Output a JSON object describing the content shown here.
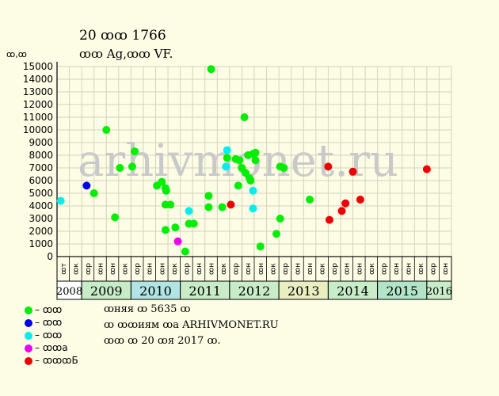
{
  "header": {
    "title": "20 ꝏꝏ 1766",
    "subtitle": "ꝏꝏ Ag,ꝏꝏ VF.",
    "y_unit": "ꝏ,ꝏ"
  },
  "watermark": "arhivmonet.ru",
  "legend": [
    {
      "label": "– ꝏꝏ",
      "color": "#00ee00"
    },
    {
      "label": "– ꝏꝏ",
      "color": "#0000ee"
    },
    {
      "label": "– ꝏꝏ",
      "color": "#00eeee"
    },
    {
      "label": "– ꝏꝏa",
      "color": "#ee00ee"
    },
    {
      "label": "– ꝏꝏꝏБ",
      "color": "#ee0000"
    }
  ],
  "notes": [
    "ꝏняя ꝏ 5635 ꝏ",
    "ꝏ ꝏꝏиям ꝏa ARHIVMONET.RU",
    "ꝏꝏ ꝏ 20 ꝏя 2017 ꝏ."
  ],
  "chart_data": {
    "type": "scatter",
    "title": "20 ꝏꝏ 1766",
    "subtitle": "ꝏꝏ Ag,ꝏꝏ VF.",
    "ylabel": "ꝏ,ꝏ",
    "ylim": [
      0,
      15000
    ],
    "yticks": [
      0,
      1000,
      2000,
      3000,
      4000,
      5000,
      6000,
      7000,
      8000,
      9000,
      10000,
      11000,
      12000,
      13000,
      14000,
      15000
    ],
    "grid": true,
    "x_periods": [
      "ꝏт",
      "ꝏк",
      "ꝏр",
      "ꝏн",
      "ꝏн",
      "ꝏк",
      "ꝏр",
      "ꝏн",
      "ꝏн",
      "ꝏк",
      "ꝏр",
      "ꝏн",
      "ꝏн",
      "ꝏк",
      "ꝏр",
      "ꝏн",
      "ꝏн",
      "ꝏк",
      "ꝏр",
      "ꝏн",
      "ꝏн",
      "ꝏк",
      "ꝏр",
      "ꝏн",
      "ꝏн",
      "ꝏк",
      "ꝏр",
      "ꝏн",
      "ꝏн",
      "ꝏк",
      "ꝏр",
      "ꝏн"
    ],
    "years": [
      {
        "label": "2008",
        "start": 0,
        "count": 2,
        "color": "#ffffff"
      },
      {
        "label": "2009",
        "start": 2,
        "count": 4,
        "color": "#c8ecc8"
      },
      {
        "label": "2010",
        "start": 6,
        "count": 4,
        "color": "#b2e4e4"
      },
      {
        "label": "2011",
        "start": 10,
        "count": 4,
        "color": "#c8ecc8"
      },
      {
        "label": "2012",
        "start": 14,
        "count": 4,
        "color": "#c8ecc8"
      },
      {
        "label": "2013",
        "start": 18,
        "count": 4,
        "color": "#e8eec0"
      },
      {
        "label": "2014",
        "start": 22,
        "count": 4,
        "color": "#c8ecc8"
      },
      {
        "label": "2015",
        "start": 26,
        "count": 4,
        "color": "#b2e4c8"
      },
      {
        "label": "2016",
        "start": 30,
        "count": 2,
        "color": "#c8ecc8"
      }
    ],
    "series": [
      {
        "color": "#00ee00",
        "points": [
          [
            2.5,
            5000
          ],
          [
            3.5,
            10000
          ],
          [
            4.2,
            3100
          ],
          [
            4.6,
            7000
          ],
          [
            5.6,
            7100
          ],
          [
            5.8,
            8300
          ],
          [
            7.6,
            5600
          ],
          [
            8.0,
            5900
          ],
          [
            8.3,
            5400
          ],
          [
            8.35,
            5200
          ],
          [
            8.3,
            4100
          ],
          [
            8.3,
            2100
          ],
          [
            8.7,
            4100
          ],
          [
            9.1,
            2300
          ],
          [
            9.9,
            400
          ],
          [
            10.2,
            2600
          ],
          [
            10.6,
            2600
          ],
          [
            11.8,
            4800
          ],
          [
            11.8,
            3900
          ],
          [
            12.0,
            14800
          ],
          [
            12.9,
            3900
          ],
          [
            13.3,
            7800
          ],
          [
            14.0,
            7700
          ],
          [
            14.2,
            5600
          ],
          [
            14.3,
            7600
          ],
          [
            14.5,
            7000
          ],
          [
            14.7,
            11000
          ],
          [
            14.8,
            6600
          ],
          [
            15.0,
            8000
          ],
          [
            15.1,
            6200
          ],
          [
            15.2,
            6000
          ],
          [
            15.4,
            8100
          ],
          [
            15.6,
            8200
          ],
          [
            15.6,
            7600
          ],
          [
            16.0,
            800
          ],
          [
            17.3,
            1800
          ],
          [
            17.6,
            3000
          ],
          [
            17.6,
            7100
          ],
          [
            17.9,
            7000
          ],
          [
            20.0,
            4500
          ]
        ]
      },
      {
        "color": "#0000ee",
        "points": [
          [
            1.9,
            5600
          ]
        ]
      },
      {
        "color": "#00eeee",
        "points": [
          [
            -0.2,
            4400
          ],
          [
            10.2,
            3600
          ],
          [
            13.3,
            8400
          ],
          [
            13.2,
            7100
          ],
          [
            15.4,
            5200
          ],
          [
            15.4,
            3800
          ]
        ]
      },
      {
        "color": "#ee00ee",
        "points": [
          [
            9.3,
            1200
          ]
        ]
      },
      {
        "color": "#ee0000",
        "points": [
          [
            13.6,
            4100
          ],
          [
            21.5,
            7100
          ],
          [
            21.6,
            2900
          ],
          [
            22.6,
            3600
          ],
          [
            22.9,
            4200
          ],
          [
            23.5,
            6700
          ],
          [
            24.1,
            4500
          ],
          [
            29.5,
            6900
          ]
        ]
      }
    ]
  }
}
